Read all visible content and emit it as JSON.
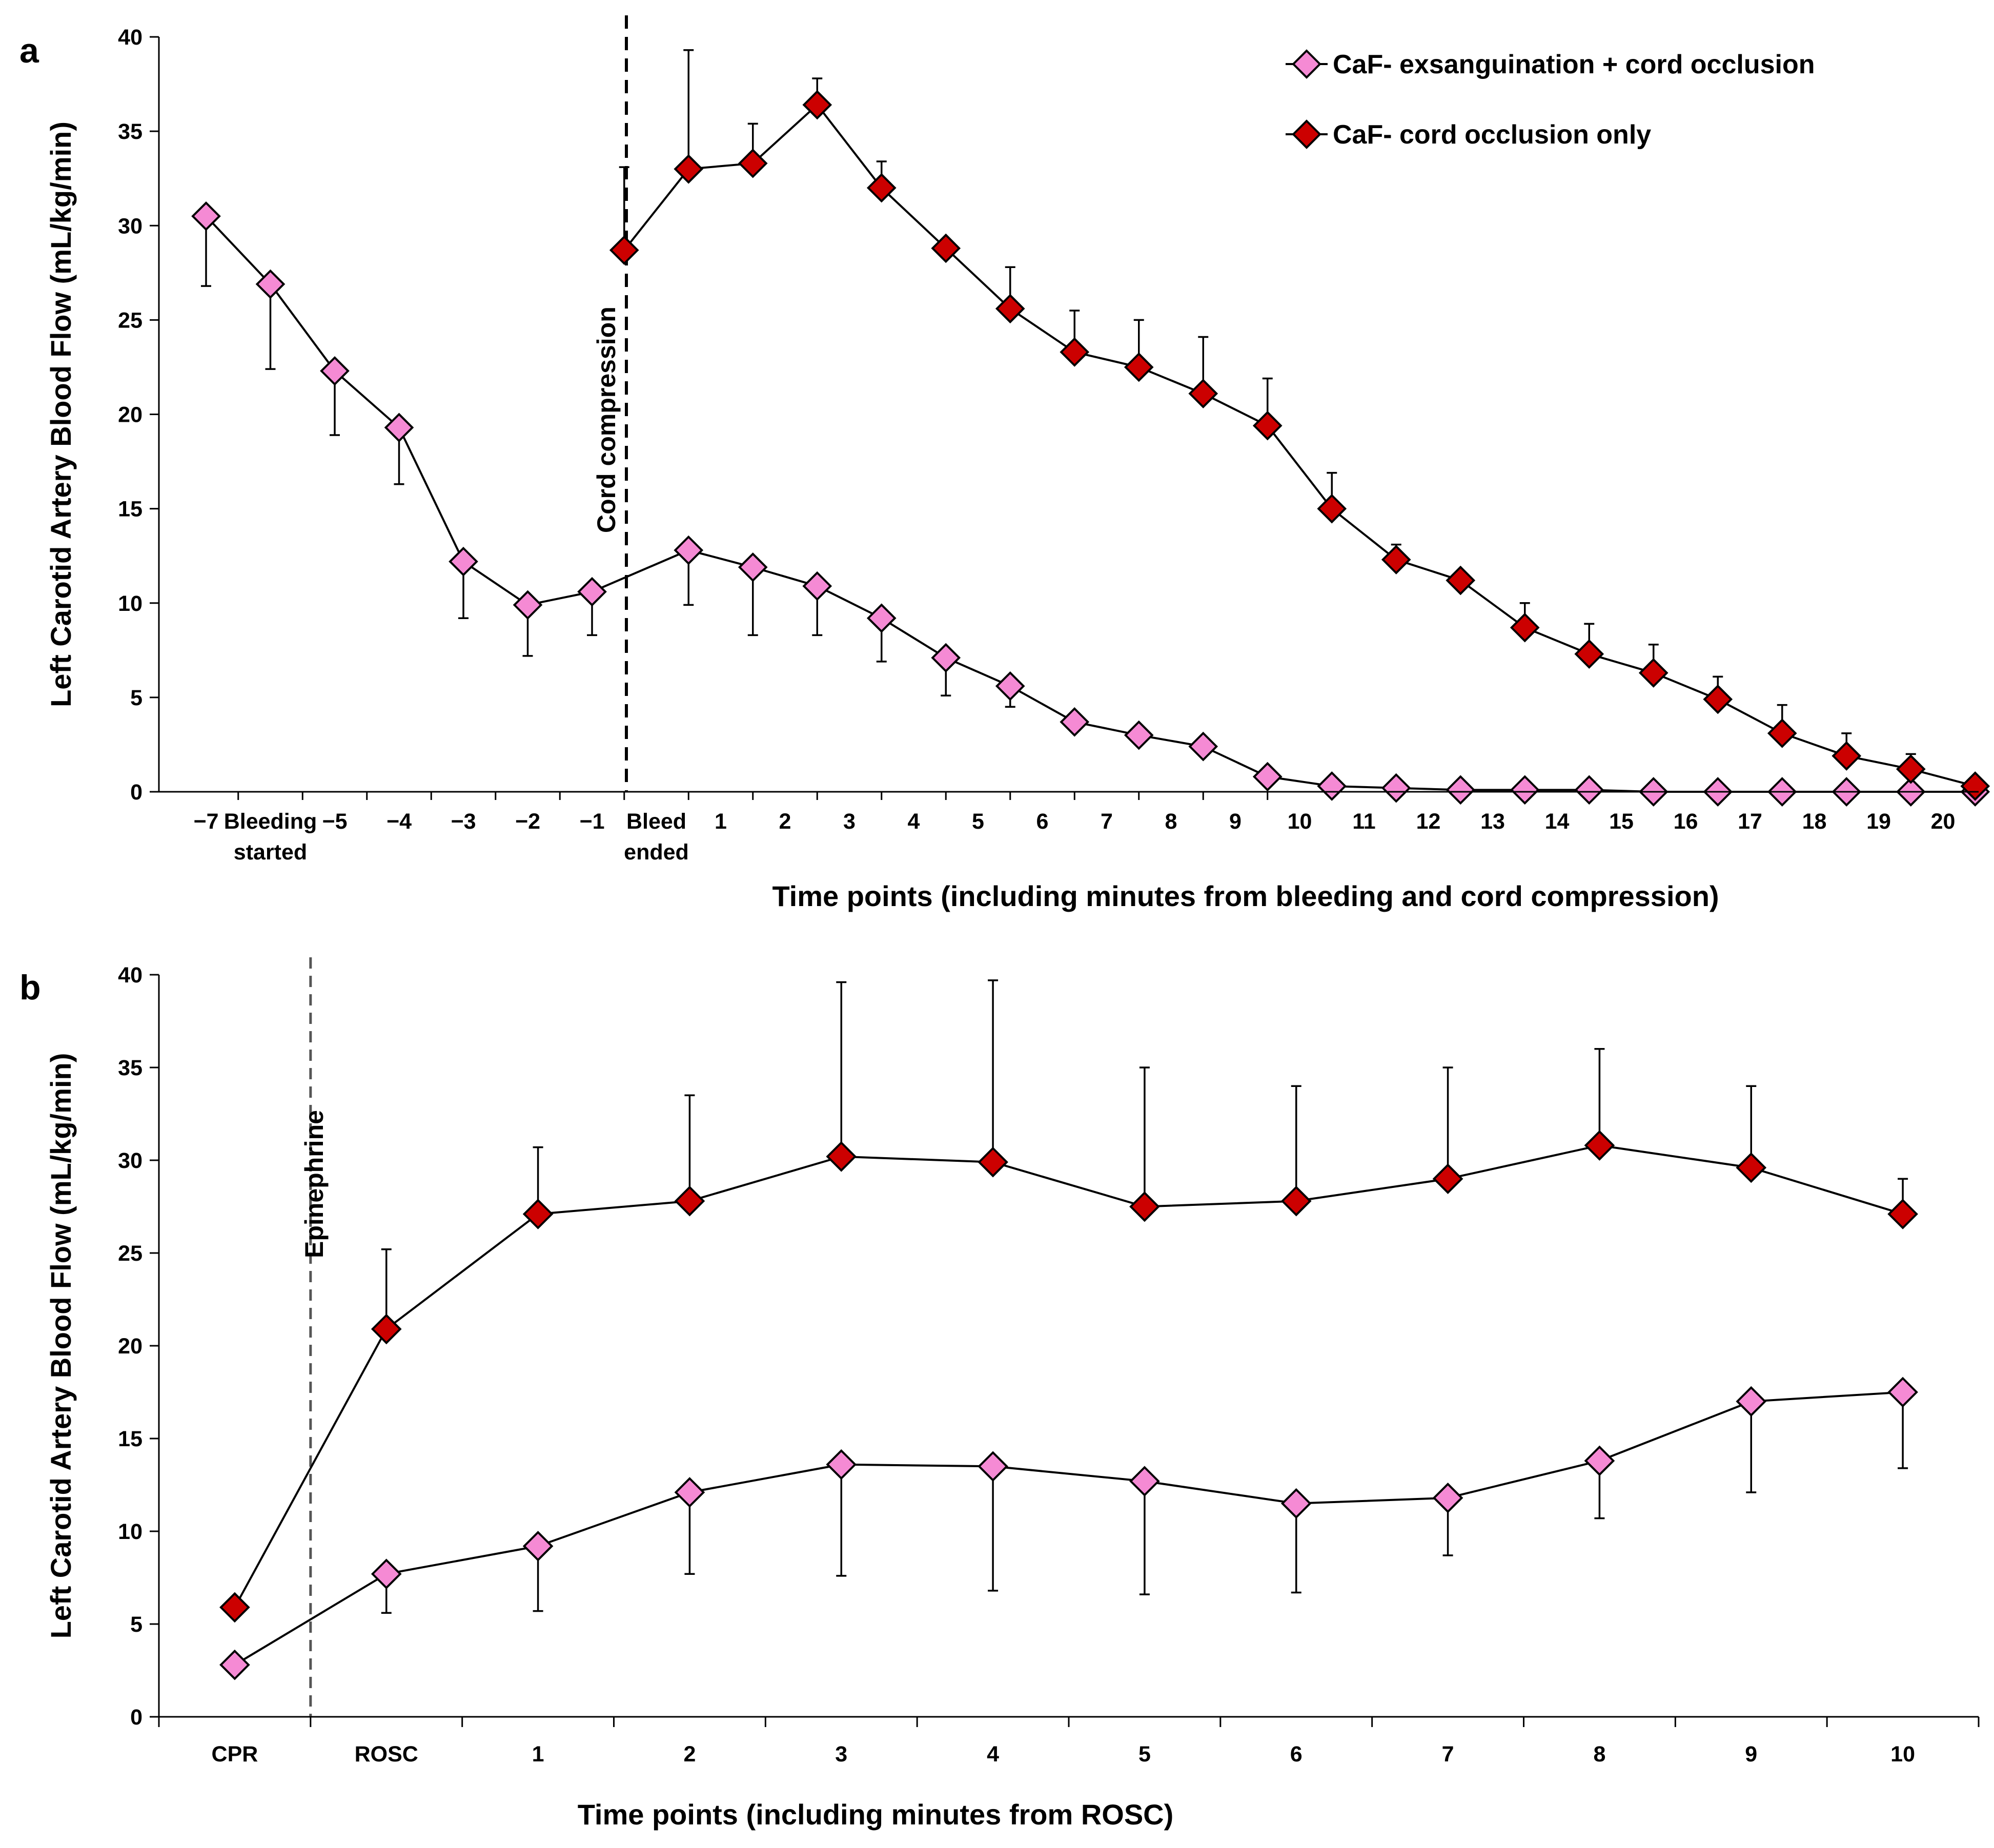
{
  "colors": {
    "exsanguination": "#f58ad4",
    "cord_only": "#cc0000",
    "marker_stroke": "#000000",
    "line": "#000000"
  },
  "legend": {
    "exsanguination": "CaF- exsanguination + cord occlusion",
    "cord_only": "CaF- cord occlusion only"
  },
  "chart_data": [
    {
      "panel": "a",
      "type": "line",
      "ylabel": "Left Carotid Artery Blood Flow (mL/kg/min)",
      "xlabel": "Time points (including minutes from bleeding and cord compression)",
      "ylim": [
        0,
        40
      ],
      "yticks": [
        0,
        5,
        10,
        15,
        20,
        25,
        30,
        35,
        40
      ],
      "categories": [
        "−7",
        "Bleeding started",
        "−5",
        "−4",
        "−3",
        "−2",
        "−1",
        "Bleed ended",
        "1",
        "2",
        "3",
        "4",
        "5",
        "6",
        "7",
        "8",
        "9",
        "10",
        "11",
        "12",
        "13",
        "14",
        "15",
        "16",
        "17",
        "18",
        "19",
        "20"
      ],
      "category_lines": [
        [
          "−7"
        ],
        [
          "Bleeding",
          "started"
        ],
        [
          "−5"
        ],
        [
          "−4"
        ],
        [
          "−3"
        ],
        [
          "−2"
        ],
        [
          "−1"
        ],
        [
          "Bleed",
          "ended"
        ],
        [
          "1"
        ],
        [
          "2"
        ],
        [
          "3"
        ],
        [
          "4"
        ],
        [
          "5"
        ],
        [
          "6"
        ],
        [
          "7"
        ],
        [
          "8"
        ],
        [
          "9"
        ],
        [
          "10"
        ],
        [
          "11"
        ],
        [
          "12"
        ],
        [
          "13"
        ],
        [
          "14"
        ],
        [
          "15"
        ],
        [
          "16"
        ],
        [
          "17"
        ],
        [
          "18"
        ],
        [
          "19"
        ],
        [
          "20"
        ]
      ],
      "annotation": {
        "label": "Cord compression",
        "at": "Bleed ended"
      },
      "series": [
        {
          "name": "CaF- exsanguination + cord occlusion",
          "x": [
            -7,
            -6,
            -5,
            -4,
            -3,
            -2,
            -1,
            0.5,
            1.5,
            2.5,
            3.5,
            4.5,
            5.5,
            6.5,
            7.5,
            8.5,
            9.5,
            10.5,
            11.5,
            12.5,
            13.5,
            14.5,
            15.5,
            16.5,
            17.5,
            18.5,
            19.5,
            20.5
          ],
          "values": [
            30.5,
            26.9,
            22.3,
            19.3,
            12.2,
            9.9,
            10.6,
            12.8,
            11.9,
            10.9,
            9.2,
            7.1,
            5.6,
            3.7,
            3.0,
            2.4,
            0.8,
            0.3,
            0.2,
            0.1,
            0.1,
            0.1,
            0.0,
            0.0,
            0.0,
            0.0,
            0.0,
            0.0
          ],
          "error": [
            3.7,
            4.5,
            3.4,
            3.0,
            3.0,
            2.7,
            2.3,
            2.9,
            3.6,
            2.6,
            2.3,
            2.0,
            1.1,
            0,
            0,
            0,
            0,
            0,
            0,
            0,
            0,
            0,
            0,
            0,
            0,
            0,
            0,
            0
          ],
          "error_direction": "down"
        },
        {
          "name": "CaF- cord occlusion only",
          "x": [
            -0.5,
            0.5,
            1.5,
            2.5,
            3.5,
            4.5,
            5.5,
            6.5,
            7.5,
            8.5,
            9.5,
            10.5,
            11.5,
            12.5,
            13.5,
            14.5,
            15.5,
            16.5,
            17.5,
            18.5,
            19.5,
            20.5
          ],
          "values": [
            28.7,
            33.0,
            33.3,
            36.4,
            32.0,
            28.8,
            25.6,
            23.3,
            22.5,
            21.1,
            19.4,
            15.0,
            12.3,
            11.2,
            8.7,
            7.3,
            6.3,
            4.9,
            3.1,
            1.9,
            1.2,
            0.3
          ],
          "error": [
            4.4,
            6.3,
            2.1,
            1.4,
            1.4,
            0,
            2.2,
            2.2,
            2.5,
            3.0,
            2.5,
            1.9,
            0.8,
            0,
            1.3,
            1.6,
            1.5,
            1.2,
            1.5,
            1.2,
            0.8,
            0
          ],
          "error_direction": "up"
        }
      ]
    },
    {
      "panel": "b",
      "type": "line",
      "ylabel": "Left Carotid Artery Blood Flow (mL/kg/min)",
      "xlabel": "Time points (including minutes from ROSC)",
      "ylim": [
        0,
        40
      ],
      "yticks": [
        0,
        5,
        10,
        15,
        20,
        25,
        30,
        35,
        40
      ],
      "categories": [
        "CPR",
        "ROSC",
        "1",
        "2",
        "3",
        "4",
        "5",
        "6",
        "7",
        "8",
        "9",
        "10"
      ],
      "category_lines": [
        [
          "CPR"
        ],
        [
          "ROSC"
        ],
        [
          "1"
        ],
        [
          "2"
        ],
        [
          "3"
        ],
        [
          "4"
        ],
        [
          "5"
        ],
        [
          "6"
        ],
        [
          "7"
        ],
        [
          "8"
        ],
        [
          "9"
        ],
        [
          "10"
        ]
      ],
      "annotation": {
        "label": "Epinephrine",
        "at": "between CPR and ROSC"
      },
      "series": [
        {
          "name": "CaF- exsanguination + cord occlusion",
          "values": [
            2.8,
            7.7,
            9.2,
            12.1,
            13.6,
            13.5,
            12.7,
            11.5,
            11.8,
            13.8,
            17.0,
            17.5
          ],
          "error": [
            0,
            2.1,
            3.5,
            4.4,
            6.0,
            6.7,
            6.1,
            4.8,
            3.1,
            3.1,
            4.9,
            4.1
          ],
          "error_direction": "down"
        },
        {
          "name": "CaF- cord occlusion only",
          "values": [
            5.9,
            20.9,
            27.1,
            27.8,
            30.2,
            29.9,
            27.5,
            27.8,
            29.0,
            30.8,
            29.6,
            27.1
          ],
          "error": [
            0,
            4.3,
            3.6,
            5.7,
            9.4,
            9.8,
            7.5,
            6.2,
            6.0,
            5.2,
            4.4,
            1.9
          ],
          "error_direction": "up"
        }
      ]
    }
  ]
}
